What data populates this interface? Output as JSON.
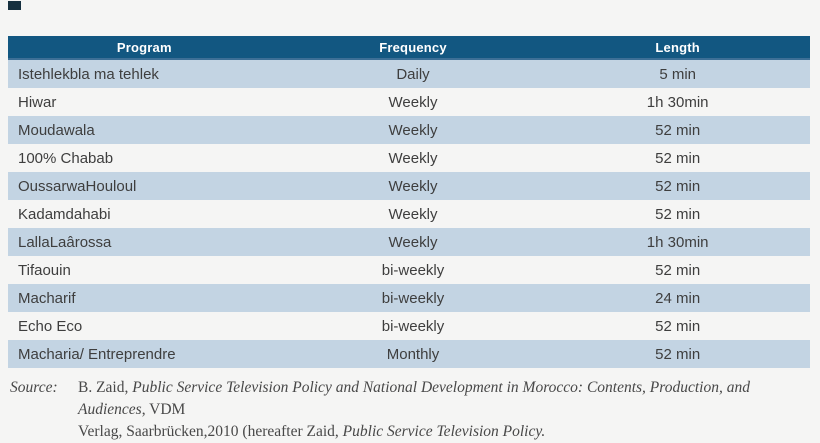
{
  "page": {
    "background_color": "#f5f5f4",
    "header_bg_color": "#125781",
    "alt_row_color": "#c3d4e3",
    "header_text_color": "#ffffff",
    "body_text_color": "#3e3e3e"
  },
  "table": {
    "columns": [
      {
        "label": "Program"
      },
      {
        "label": "Frequency"
      },
      {
        "label": "Length"
      }
    ],
    "rows": [
      {
        "program": "Istehlekbla ma tehlek",
        "frequency": "Daily",
        "length": "5 min"
      },
      {
        "program": "Hiwar",
        "frequency": "Weekly",
        "length": "1h 30min"
      },
      {
        "program": "Moudawala",
        "frequency": "Weekly",
        "length": "52 min"
      },
      {
        "program": "100% Chabab",
        "frequency": "Weekly",
        "length": "52 min"
      },
      {
        "program": "OussarwaHouloul",
        "frequency": "Weekly",
        "length": "52 min"
      },
      {
        "program": "Kadamdahabi",
        "frequency": "Weekly",
        "length": "52 min"
      },
      {
        "program": "LallaLaârossa",
        "frequency": "Weekly",
        "length": "1h 30min"
      },
      {
        "program": "Tifaouin",
        "frequency": "bi-weekly",
        "length": "52 min"
      },
      {
        "program": "Macharif",
        "frequency": "bi-weekly",
        "length": "24 min"
      },
      {
        "program": "Echo Eco",
        "frequency": "bi-weekly",
        "length": "52 min"
      },
      {
        "program": "Macharia/ Entreprendre",
        "frequency": "Monthly",
        "length": "52 min"
      }
    ]
  },
  "source": {
    "label": "Source:",
    "seg_author": "B. Zaid, ",
    "seg_title": "Public Service Television Policy and National Development in Morocco: Contents, Production, and Audiences",
    "seg_after_title": ", VDM",
    "seg_line2_roman": "Verlag, Saarbrücken,2010 (hereafter Zaid, ",
    "seg_line2_italic": "Public Service Television Policy."
  }
}
